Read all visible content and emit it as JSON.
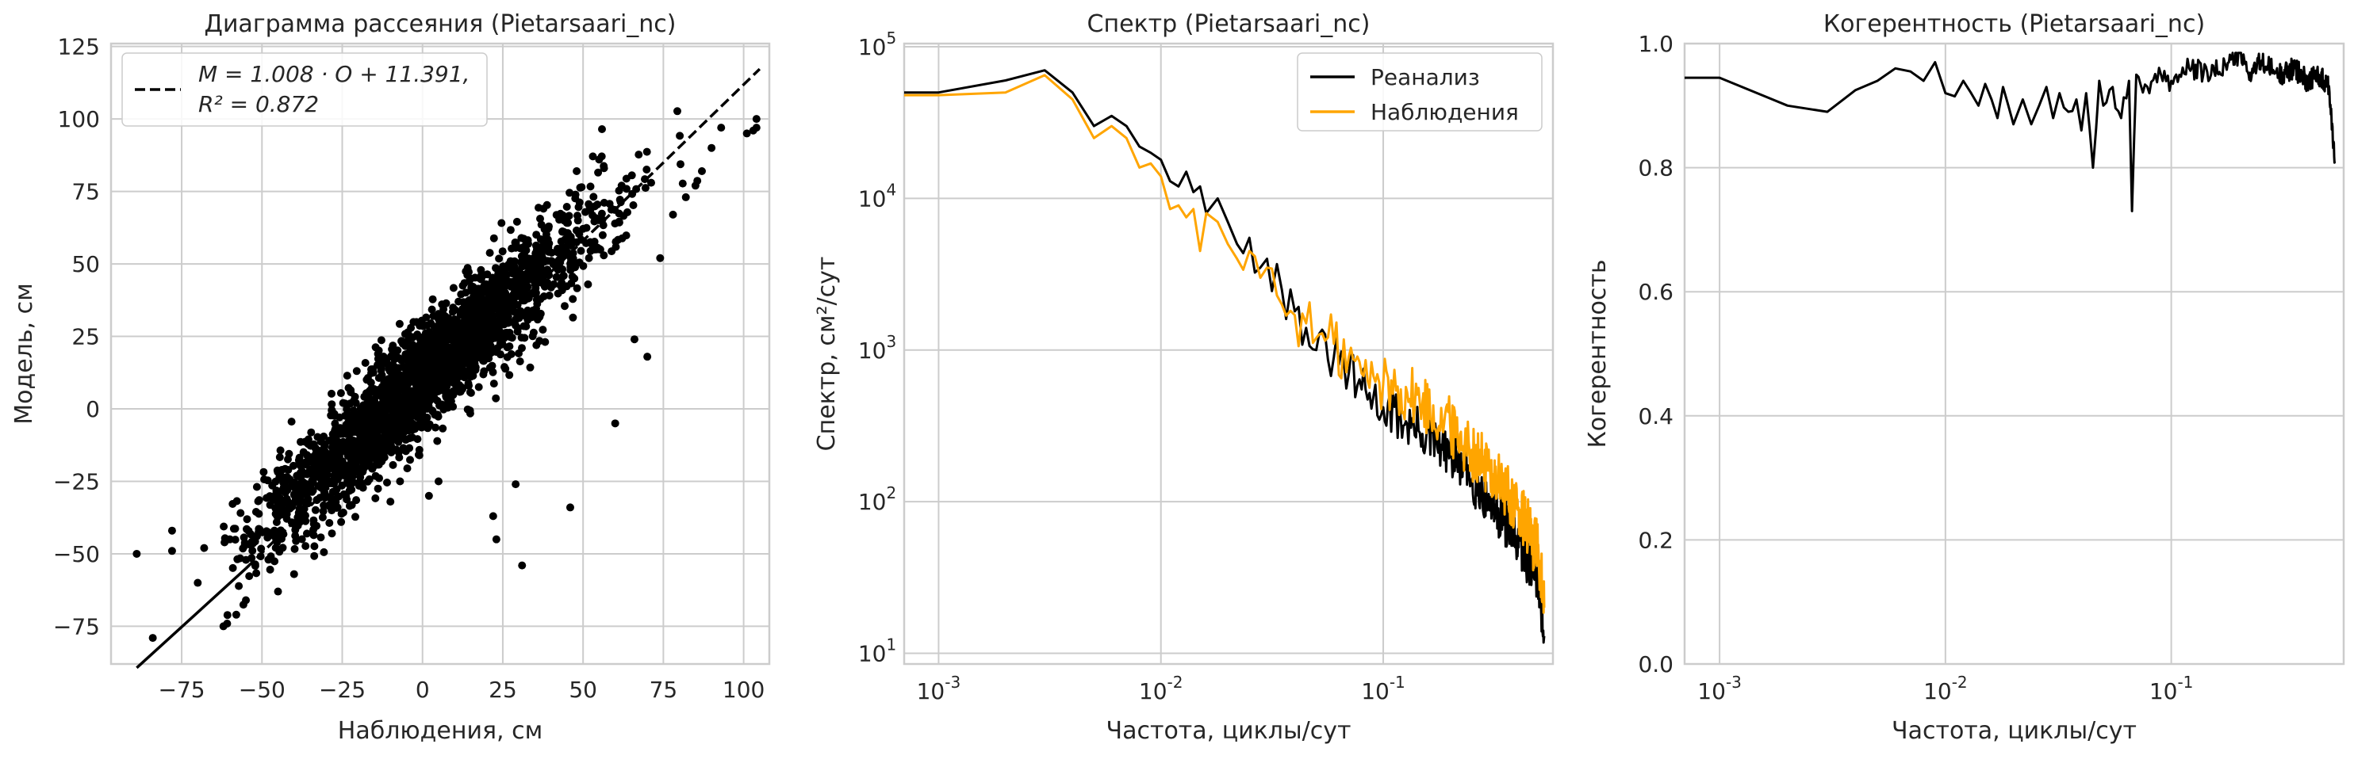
{
  "chart_data": [
    {
      "type": "scatter",
      "title": "Диаграмма рассеяния (Pietarsaari_nc)",
      "xlabel": "Наблюдения, см",
      "ylabel": "Модель, см",
      "xlim": [
        -97,
        108
      ],
      "ylim": [
        -88,
        126
      ],
      "xticks": [
        -75,
        -50,
        -25,
        0,
        25,
        50,
        75,
        100
      ],
      "yticks": [
        -75,
        -50,
        -25,
        0,
        25,
        50,
        75,
        100,
        125
      ],
      "xtick_labels": [
        "−75",
        "−50",
        "−25",
        "0",
        "25",
        "50",
        "75",
        "100"
      ],
      "ytick_labels": [
        "−75",
        "−50",
        "−25",
        "0",
        "25",
        "50",
        "75",
        "100",
        "125"
      ],
      "grid": true,
      "legend": "top-left",
      "fit": {
        "slope": 1.008,
        "intercept": 11.391,
        "x_range": [
          -89,
          105
        ],
        "r2": 0.872
      },
      "legend_line1": "M = 1.008 · O + 11.391,",
      "legend_line2": "R² = 0.872",
      "point_color": "#000000",
      "cloud": {
        "n": 2600,
        "x_center": 0,
        "x_spread": 26,
        "noise": 9.5
      },
      "outliers": [
        [
          -89,
          -50
        ],
        [
          -78,
          -49
        ],
        [
          -70,
          -60
        ],
        [
          -62,
          -75
        ],
        [
          -58,
          -71
        ],
        [
          -55,
          -66
        ],
        [
          -45,
          -63
        ],
        [
          -40,
          -57
        ],
        [
          -36,
          -43
        ],
        [
          -60,
          -45
        ],
        [
          -53,
          -46
        ],
        [
          -20,
          -17
        ],
        [
          -10,
          -32
        ],
        [
          -7,
          -25
        ],
        [
          2,
          -30
        ],
        [
          5,
          -25
        ],
        [
          22,
          -37
        ],
        [
          23,
          -45
        ],
        [
          29,
          -26
        ],
        [
          31,
          -54
        ],
        [
          46,
          -34
        ],
        [
          60,
          -5
        ],
        [
          66,
          24
        ],
        [
          70,
          18
        ],
        [
          74,
          52
        ],
        [
          85,
          77
        ],
        [
          90,
          90
        ],
        [
          93,
          97
        ],
        [
          101,
          95
        ],
        [
          104,
          100
        ],
        [
          104,
          97
        ],
        [
          103,
          96
        ],
        [
          -78,
          -42
        ],
        [
          -68,
          -48
        ],
        [
          -48,
          -52
        ],
        [
          38,
          62
        ],
        [
          48,
          82
        ],
        [
          55,
          86
        ],
        [
          62,
          77
        ],
        [
          78,
          67
        ],
        [
          82,
          73
        ],
        [
          87,
          82
        ],
        [
          -84,
          -79
        ]
      ]
    },
    {
      "type": "line",
      "title": "Спектр (Pietarsaari_nc)",
      "xlabel": "Частота, циклы/сут",
      "ylabel": "Спектр, см²/сут",
      "xscale": "log",
      "yscale": "log",
      "xlim": [
        0.0007,
        0.58
      ],
      "ylim": [
        8.5,
        105000
      ],
      "xticks": [
        0.001,
        0.01,
        0.1
      ],
      "yticks": [
        10,
        100,
        1000,
        10000,
        100000
      ],
      "grid": true,
      "legend": "top-right",
      "series": [
        {
          "name": "Реанализ",
          "color": "#000000",
          "points": [
            [
              0.0007,
              50000
            ],
            [
              0.001,
              50000
            ],
            [
              0.002,
              60000
            ],
            [
              0.003,
              70000
            ],
            [
              0.004,
              50000
            ],
            [
              0.005,
              30000
            ],
            [
              0.006,
              35000
            ],
            [
              0.007,
              30000
            ],
            [
              0.008,
              22000
            ],
            [
              0.009,
              20000
            ],
            [
              0.01,
              18000
            ],
            [
              0.011,
              13000
            ],
            [
              0.012,
              12000
            ],
            [
              0.013,
              15000
            ],
            [
              0.014,
              11000
            ],
            [
              0.015,
              12000
            ],
            [
              0.016,
              8000
            ],
            [
              0.018,
              10000
            ],
            [
              0.02,
              7000
            ],
            [
              0.022,
              5000
            ],
            [
              0.025,
              5500
            ],
            [
              0.028,
              3500
            ],
            [
              0.03,
              4000
            ],
            [
              0.035,
              2500
            ],
            [
              0.04,
              1800
            ],
            [
              0.045,
              1400
            ],
            [
              0.05,
              1000
            ],
            [
              0.06,
              900
            ],
            [
              0.07,
              700
            ],
            [
              0.08,
              550
            ],
            [
              0.1,
              420
            ],
            [
              0.12,
              350
            ],
            [
              0.15,
              280
            ],
            [
              0.2,
              200
            ],
            [
              0.25,
              140
            ],
            [
              0.3,
              100
            ],
            [
              0.35,
              75
            ],
            [
              0.4,
              55
            ],
            [
              0.45,
              40
            ],
            [
              0.5,
              30
            ],
            [
              0.53,
              13
            ]
          ],
          "jitter": 0.16
        },
        {
          "name": "Наблюдения",
          "color": "#ffa500",
          "points": [
            [
              0.0007,
              48000
            ],
            [
              0.001,
              48000
            ],
            [
              0.002,
              50000
            ],
            [
              0.003,
              65000
            ],
            [
              0.004,
              45000
            ],
            [
              0.005,
              25000
            ],
            [
              0.006,
              30000
            ],
            [
              0.007,
              25000
            ],
            [
              0.008,
              16000
            ],
            [
              0.009,
              17000
            ],
            [
              0.01,
              14000
            ],
            [
              0.011,
              8500
            ],
            [
              0.012,
              9000
            ],
            [
              0.013,
              7500
            ],
            [
              0.014,
              8500
            ],
            [
              0.015,
              4500
            ],
            [
              0.016,
              8000
            ],
            [
              0.018,
              7000
            ],
            [
              0.02,
              5000
            ],
            [
              0.022,
              4000
            ],
            [
              0.025,
              4500
            ],
            [
              0.028,
              3000
            ],
            [
              0.03,
              3500
            ],
            [
              0.035,
              2000
            ],
            [
              0.04,
              1700
            ],
            [
              0.045,
              1500
            ],
            [
              0.05,
              1200
            ],
            [
              0.06,
              1100
            ],
            [
              0.07,
              900
            ],
            [
              0.08,
              700
            ],
            [
              0.1,
              600
            ],
            [
              0.12,
              550
            ],
            [
              0.15,
              450
            ],
            [
              0.2,
              320
            ],
            [
              0.25,
              220
            ],
            [
              0.3,
              160
            ],
            [
              0.35,
              120
            ],
            [
              0.4,
              90
            ],
            [
              0.45,
              65
            ],
            [
              0.5,
              45
            ],
            [
              0.53,
              20
            ]
          ],
          "jitter": 0.2
        }
      ]
    },
    {
      "type": "line",
      "title": "Когерентность (Pietarsaari_nc)",
      "xlabel": "Частота, циклы/сут",
      "ylabel": "Когерентность",
      "xscale": "log",
      "xlim": [
        0.0007,
        0.58
      ],
      "ylim": [
        0,
        1
      ],
      "xticks": [
        0.001,
        0.01,
        0.1
      ],
      "yticks": [
        0,
        0.2,
        0.4,
        0.6,
        0.8,
        1.0
      ],
      "ytick_labels": [
        "0.0",
        "0.2",
        "0.4",
        "0.6",
        "0.8",
        "1.0"
      ],
      "grid": true,
      "series": [
        {
          "color": "#000000",
          "points": [
            [
              0.0007,
              0.945
            ],
            [
              0.001,
              0.945
            ],
            [
              0.002,
              0.9
            ],
            [
              0.003,
              0.89
            ],
            [
              0.004,
              0.925
            ],
            [
              0.005,
              0.94
            ],
            [
              0.006,
              0.96
            ],
            [
              0.007,
              0.955
            ],
            [
              0.008,
              0.94
            ],
            [
              0.009,
              0.97
            ],
            [
              0.01,
              0.92
            ],
            [
              0.011,
              0.915
            ],
            [
              0.012,
              0.94
            ],
            [
              0.013,
              0.92
            ],
            [
              0.014,
              0.9
            ],
            [
              0.015,
              0.935
            ],
            [
              0.016,
              0.91
            ],
            [
              0.017,
              0.88
            ],
            [
              0.018,
              0.93
            ],
            [
              0.019,
              0.9
            ],
            [
              0.02,
              0.87
            ],
            [
              0.022,
              0.91
            ],
            [
              0.024,
              0.87
            ],
            [
              0.026,
              0.9
            ],
            [
              0.028,
              0.93
            ],
            [
              0.03,
              0.88
            ],
            [
              0.032,
              0.92
            ],
            [
              0.035,
              0.89
            ],
            [
              0.038,
              0.91
            ],
            [
              0.04,
              0.86
            ],
            [
              0.042,
              0.92
            ],
            [
              0.045,
              0.8
            ],
            [
              0.048,
              0.94
            ],
            [
              0.05,
              0.9
            ],
            [
              0.055,
              0.93
            ],
            [
              0.06,
              0.88
            ],
            [
              0.065,
              0.94
            ],
            [
              0.067,
              0.73
            ],
            [
              0.07,
              0.95
            ],
            [
              0.08,
              0.92
            ],
            [
              0.09,
              0.95
            ],
            [
              0.1,
              0.94
            ],
            [
              0.12,
              0.96
            ],
            [
              0.15,
              0.95
            ],
            [
              0.18,
              0.97
            ],
            [
              0.2,
              0.985
            ],
            [
              0.22,
              0.95
            ],
            [
              0.25,
              0.97
            ],
            [
              0.3,
              0.95
            ],
            [
              0.35,
              0.96
            ],
            [
              0.4,
              0.94
            ],
            [
              0.45,
              0.95
            ],
            [
              0.5,
              0.93
            ],
            [
              0.53,
              0.81
            ]
          ],
          "jitter": 0.018
        }
      ]
    }
  ]
}
